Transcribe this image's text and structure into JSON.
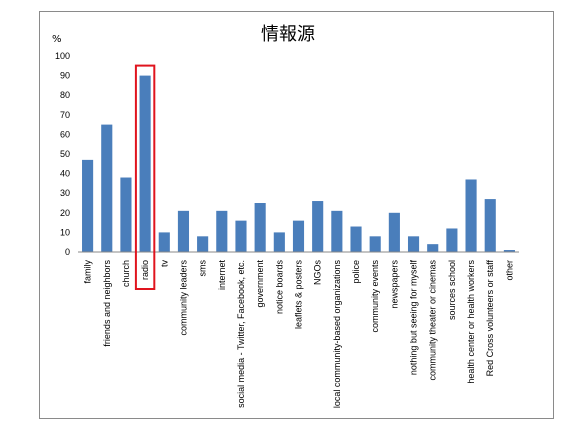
{
  "chart_data": {
    "type": "bar",
    "title": "情報源",
    "ylabel": "%",
    "ylim": [
      0,
      100
    ],
    "yticks": [
      0,
      10,
      20,
      30,
      40,
      50,
      60,
      70,
      80,
      90,
      100
    ],
    "bar_color": "#4a7ebb",
    "highlight_color": "#e0141e",
    "highlighted_category": "radio",
    "categories": [
      "family",
      "friends and neighbors",
      "church",
      "radio",
      "tv",
      "community leaders",
      "sms",
      "internet",
      "social media - Twitter, Facebook, etc.",
      "government",
      "notice boards",
      "leaflets & posters",
      "NGOs",
      "local community-based organizations",
      "police",
      "community events",
      "newspapers",
      "nothing but seeing for myself",
      "community theater or cinemas",
      "sources school",
      "health center or health workers",
      "Red Cross volunteers or staff",
      "other"
    ],
    "values": [
      47,
      65,
      38,
      90,
      10,
      21,
      8,
      21,
      16,
      25,
      10,
      16,
      26,
      21,
      13,
      8,
      20,
      8,
      4,
      12,
      37,
      27,
      1
    ]
  }
}
